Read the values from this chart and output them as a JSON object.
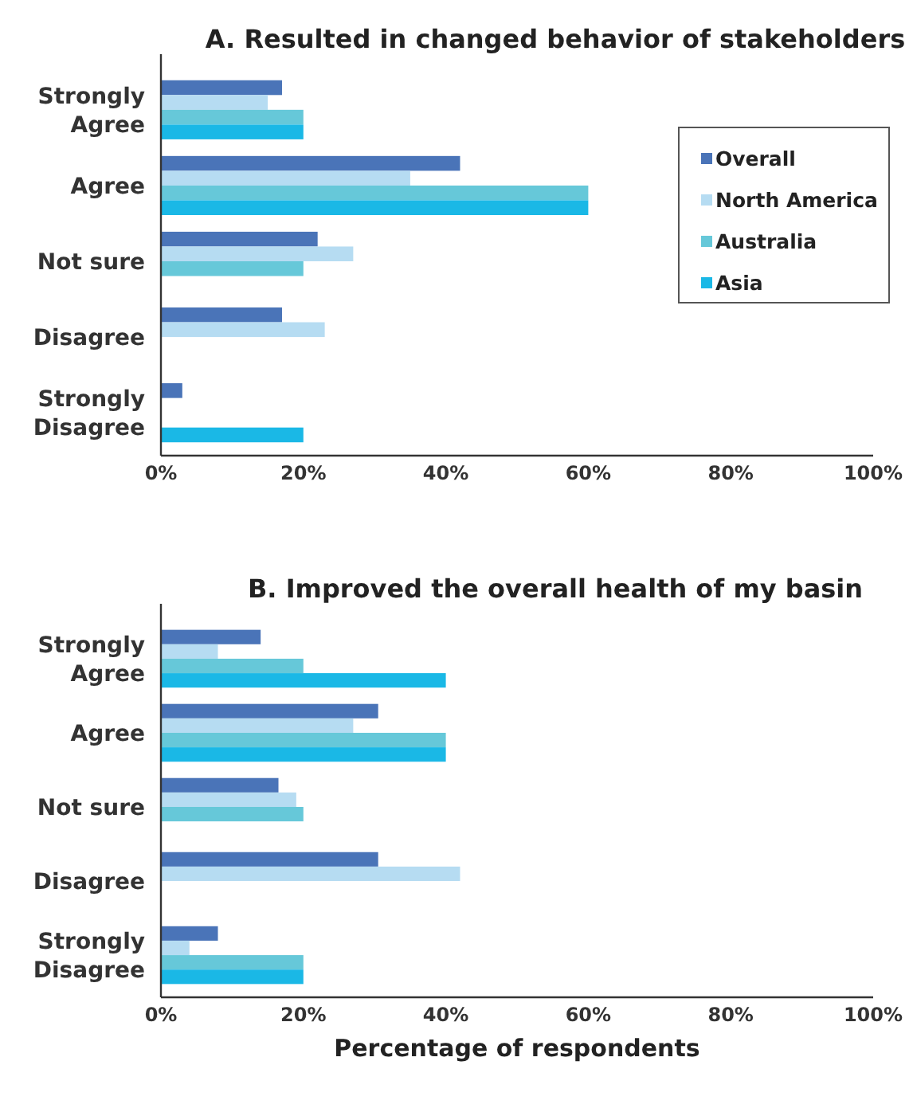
{
  "chart_data": [
    {
      "type": "bar",
      "orientation": "horizontal",
      "title": "A. Resulted in changed behavior of stakeholders",
      "categories": [
        "Strongly\nAgree",
        "Agree",
        "Not sure",
        "Disagree",
        "Strongly\nDisagree"
      ],
      "series": [
        {
          "name": "Overall",
          "color": "#4a74b8",
          "values": [
            17,
            42,
            22,
            17,
            3
          ]
        },
        {
          "name": "North America",
          "color": "#b6dcf2",
          "values": [
            15,
            35,
            27,
            23,
            null
          ]
        },
        {
          "name": "Australia",
          "color": "#66c8d9",
          "values": [
            20,
            60,
            20,
            null,
            null
          ]
        },
        {
          "name": "Asia",
          "color": "#1ab8e6",
          "values": [
            20,
            60,
            null,
            null,
            20
          ]
        }
      ],
      "xlim": [
        0,
        100
      ],
      "xticks": [
        {
          "value": 0,
          "label": "0%"
        },
        {
          "value": 20,
          "label": "20%"
        },
        {
          "value": 40,
          "label": "40%"
        },
        {
          "value": 60,
          "label": "60%"
        },
        {
          "value": 80,
          "label": "80%"
        },
        {
          "value": 100,
          "label": "100%"
        }
      ],
      "grid": false,
      "legend": "right"
    },
    {
      "type": "bar",
      "orientation": "horizontal",
      "title": "B. Improved the overall health of my basin",
      "xlabel": "Percentage of respondents",
      "categories": [
        "Strongly\nAgree",
        "Agree",
        "Not sure",
        "Disagree",
        "Strongly\nDisagree"
      ],
      "series": [
        {
          "color": "#4a74b8",
          "values": [
            14,
            30.5,
            16.5,
            30.5,
            8
          ]
        },
        {
          "color": "#b6dcf2",
          "values": [
            8,
            27,
            19,
            42,
            4
          ]
        },
        {
          "color": "#66c8d9",
          "values": [
            20,
            40,
            20,
            null,
            20
          ]
        },
        {
          "color": "#1ab8e6",
          "values": [
            40,
            40,
            null,
            null,
            20
          ]
        }
      ],
      "xlim": [
        0,
        100
      ],
      "xticks": [
        {
          "value": 0,
          "label": "0%"
        },
        {
          "value": 20,
          "label": "20%"
        },
        {
          "value": 40,
          "label": "40%"
        },
        {
          "value": 60,
          "label": "60%"
        },
        {
          "value": 80,
          "label": "80%"
        },
        {
          "value": 100,
          "label": "100%"
        }
      ],
      "grid": false,
      "legend": false
    }
  ]
}
